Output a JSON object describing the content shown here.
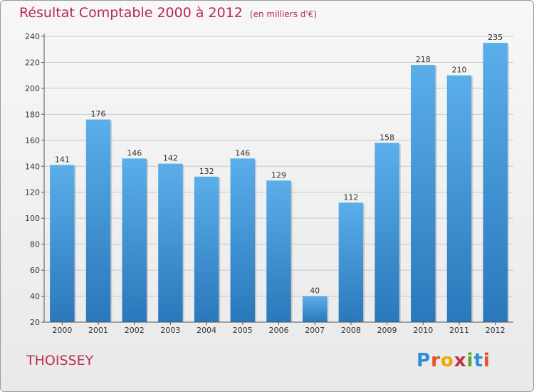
{
  "title": "Résultat Comptable 2000 à 2012",
  "subtitle": "(en milliers d'€)",
  "city": "THOISSEY",
  "logo": {
    "letters": [
      "P",
      "r",
      "o",
      "x",
      "i",
      "t",
      "i"
    ],
    "colors": [
      "#2a8fd8",
      "#e8501e",
      "#f0a800",
      "#c0304f",
      "#5aa629",
      "#2a8fd8",
      "#e8501e"
    ]
  },
  "colors": {
    "bar_top": "#5aaeea",
    "bar_bottom": "#2a78bb",
    "title": "#b8284f",
    "axis": "#333333"
  },
  "chart_data": {
    "type": "bar",
    "categories": [
      "2000",
      "2001",
      "2002",
      "2003",
      "2004",
      "2005",
      "2006",
      "2007",
      "2008",
      "2009",
      "2010",
      "2011",
      "2012"
    ],
    "values": [
      141,
      176,
      146,
      142,
      132,
      146,
      129,
      40,
      112,
      158,
      218,
      210,
      235
    ],
    "ylim": [
      20,
      240
    ],
    "yticks": [
      20,
      40,
      60,
      80,
      100,
      120,
      140,
      160,
      180,
      200,
      220,
      240
    ],
    "grid": true
  }
}
